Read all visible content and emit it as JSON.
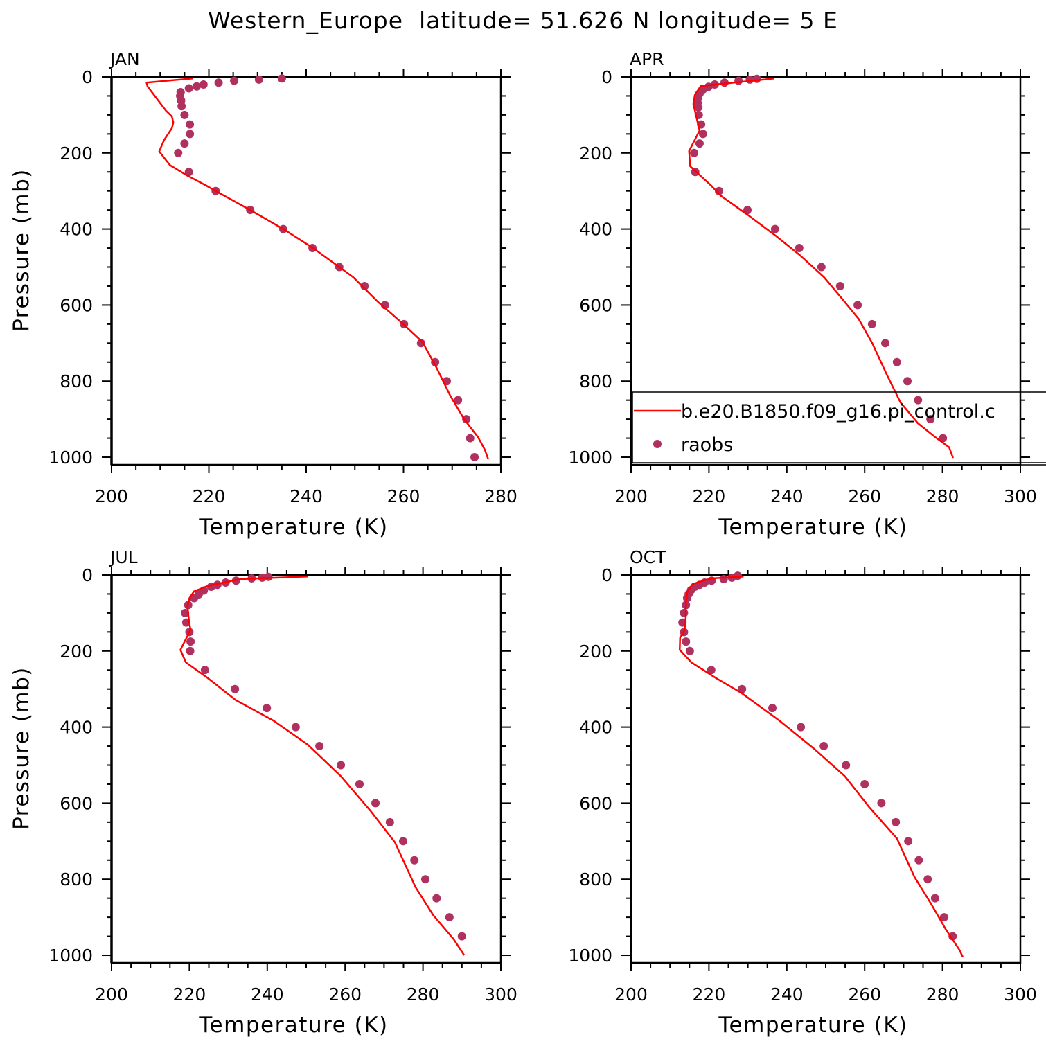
{
  "chart_data": {
    "title": "Western_Europe  latitude= 51.626 N longitude= 5 E",
    "type": "line",
    "colors": {
      "model": "#ff0000",
      "obs": "#b03060"
    },
    "legend": {
      "placement": "inside APR panel, lower",
      "entries": [
        {
          "label": "b.e20.B1850.f09_g16.pi_control.c",
          "kind": "line"
        },
        {
          "label": "raobs",
          "kind": "marker"
        }
      ]
    },
    "panels": [
      {
        "label": "JAN",
        "xlabel": "Temperature (K)",
        "ylabel": "Pressure (mb)",
        "xlim": [
          200,
          280
        ],
        "ylim": [
          1020,
          0
        ],
        "xticks": [
          200,
          220,
          240,
          260,
          280
        ],
        "yticks": [
          0,
          200,
          400,
          600,
          800,
          1000
        ],
        "model": {
          "T": [
            216.7,
            207.2,
            207.4,
            211.2,
            212.4,
            212.7,
            212.4,
            210.8,
            209.8,
            212,
            215.5,
            219.5,
            221.4,
            228.5,
            235.3,
            241.3,
            246.8,
            249.7,
            254.7,
            259.6,
            263.9,
            266.8,
            269.6,
            272.5,
            275.3,
            276.7,
            277.4
          ],
          "P": [
            4,
            15,
            25,
            89,
            104,
            120,
            135,
            166,
            196,
            232,
            259,
            286,
            300,
            350,
            400,
            449,
            500,
            527,
            591,
            646,
            697,
            765,
            838,
            901,
            947,
            980,
            1005
          ]
        },
        "raobs": {
          "T": [
            235,
            230.3,
            225.2,
            222,
            218.9,
            217.5,
            215.9,
            214.2,
            214.1,
            214.3,
            214.4,
            215,
            216.1,
            216.1,
            215,
            213.7,
            215.9,
            221.4,
            228.5,
            235.3,
            241.3,
            246.8,
            252,
            256.2,
            260.1,
            263.6,
            266.5,
            268.9,
            271.2,
            272.9,
            273.7,
            274.6
          ],
          "P": [
            4,
            7,
            10,
            15,
            20,
            25,
            30,
            40,
            50,
            62,
            77,
            100,
            125,
            150,
            175,
            200,
            250,
            300,
            350,
            400,
            450,
            500,
            550,
            600,
            650,
            700,
            750,
            800,
            850,
            900,
            950,
            1000
          ]
        }
      },
      {
        "label": "APR",
        "xlabel": "Temperature (K)",
        "ylabel": "",
        "xlim": [
          200,
          300
        ],
        "ylim": [
          1020,
          0
        ],
        "xticks": [
          200,
          220,
          240,
          260,
          280,
          300
        ],
        "yticks": [
          0,
          200,
          400,
          600,
          800,
          1000
        ],
        "model": {
          "T": [
            236.8,
            217.9,
            216.4,
            216,
            216.7,
            217.6,
            214.9,
            215.2,
            220.6,
            223,
            230,
            237.2,
            243.4,
            249.6,
            254.1,
            258.5,
            262,
            265.7,
            269.2,
            273.7,
            278.1,
            281.7,
            282.7
          ],
          "P": [
            4,
            24,
            47,
            71,
            102,
            141,
            195,
            235,
            286,
            312,
            363,
            418,
            469,
            527,
            582,
            637,
            701,
            783,
            856,
            911,
            947,
            974,
            1002
          ]
        },
        "raobs": {
          "T": [
            232.3,
            230.5,
            227.6,
            224,
            221.5,
            219.9,
            218.5,
            217.6,
            217.2,
            217.1,
            217.3,
            217.4,
            218,
            218.5,
            217.6,
            216.2,
            216.5,
            222.6,
            229.9,
            237,
            243.2,
            248.9,
            253.7,
            258.2,
            261.9,
            265.3,
            268.3,
            271,
            273.7,
            276.9,
            280.1
          ],
          "P": [
            5,
            7,
            10,
            15,
            20,
            26,
            33,
            44,
            56,
            68,
            80,
            100,
            125,
            150,
            175,
            200,
            250,
            300,
            350,
            400,
            450,
            500,
            550,
            600,
            650,
            700,
            750,
            800,
            850,
            900,
            950
          ]
        }
      },
      {
        "label": "JUL",
        "xlabel": "Temperature (K)",
        "ylabel": "Pressure (mb)",
        "xlim": [
          200,
          300
        ],
        "ylim": [
          1020,
          0
        ],
        "xticks": [
          200,
          220,
          240,
          260,
          280,
          300
        ],
        "yticks": [
          0,
          200,
          400,
          600,
          800,
          1000
        ],
        "model": {
          "T": [
            250.4,
            233,
            224.7,
            221.2,
            220,
            219.5,
            219.9,
            220.3,
            217.7,
            219.1,
            224.7,
            231.9,
            241.6,
            250.5,
            258.9,
            266.5,
            272.8,
            278.1,
            282.6,
            287.9,
            290.6
          ],
          "P": [
            4,
            11,
            29,
            43,
            61,
            82,
            121,
            144,
            197,
            230,
            271,
            329,
            383,
            447,
            529,
            620,
            703,
            821,
            894,
            958,
            1000
          ]
        },
        "raobs": {
          "T": [
            240.3,
            238.7,
            236,
            232,
            229.3,
            227.2,
            225.6,
            223.7,
            222.4,
            221.2,
            219.7,
            218.9,
            219.2,
            220,
            220.3,
            220.2,
            224,
            231.7,
            239.9,
            247.3,
            253.4,
            258.9,
            263.7,
            267.8,
            271.5,
            274.9,
            277.8,
            280.6,
            283.5,
            286.8,
            290
          ],
          "P": [
            5,
            7,
            9,
            15,
            20,
            26,
            31,
            41,
            51,
            61,
            79,
            100,
            125,
            150,
            175,
            200,
            250,
            300,
            350,
            400,
            450,
            500,
            550,
            600,
            650,
            700,
            750,
            800,
            850,
            900,
            950
          ]
        }
      },
      {
        "label": "OCT",
        "xlabel": "Temperature (K)",
        "ylabel": "",
        "xlim": [
          200,
          300
        ],
        "ylim": [
          1020,
          0
        ],
        "xticks": [
          200,
          220,
          240,
          260,
          280,
          300
        ],
        "yticks": [
          0,
          200,
          400,
          600,
          800,
          1000
        ],
        "model": {
          "T": [
            228.9,
            220.6,
            215.8,
            214.5,
            214.1,
            214,
            213.5,
            212.6,
            212.5,
            215.5,
            221.8,
            228.3,
            238.1,
            246.9,
            254.9,
            261.2,
            268.3,
            272.8,
            277.2,
            280.8,
            284.3,
            285.2
          ],
          "P": [
            4,
            9,
            24,
            43,
            73,
            128,
            152,
            164,
            197,
            230,
            271,
            310,
            383,
            456,
            529,
            611,
            693,
            794,
            867,
            931,
            985,
            1004
          ]
        },
        "raobs": {
          "T": [
            227.4,
            225.9,
            223.8,
            220.7,
            218.9,
            217.6,
            216.4,
            215.4,
            214.8,
            214.4,
            214.1,
            213.6,
            213.2,
            213.6,
            214.1,
            215.1,
            220.6,
            228.5,
            236.3,
            243.6,
            249.5,
            255.2,
            260,
            264.3,
            268,
            271.2,
            273.9,
            276.2,
            278.1,
            280.4,
            282.6
          ],
          "P": [
            2,
            7,
            11,
            15,
            20,
            26,
            31,
            40,
            50,
            61,
            79,
            100,
            125,
            150,
            175,
            200,
            250,
            300,
            350,
            400,
            450,
            500,
            550,
            600,
            650,
            700,
            750,
            800,
            850,
            900,
            950
          ]
        }
      }
    ]
  }
}
